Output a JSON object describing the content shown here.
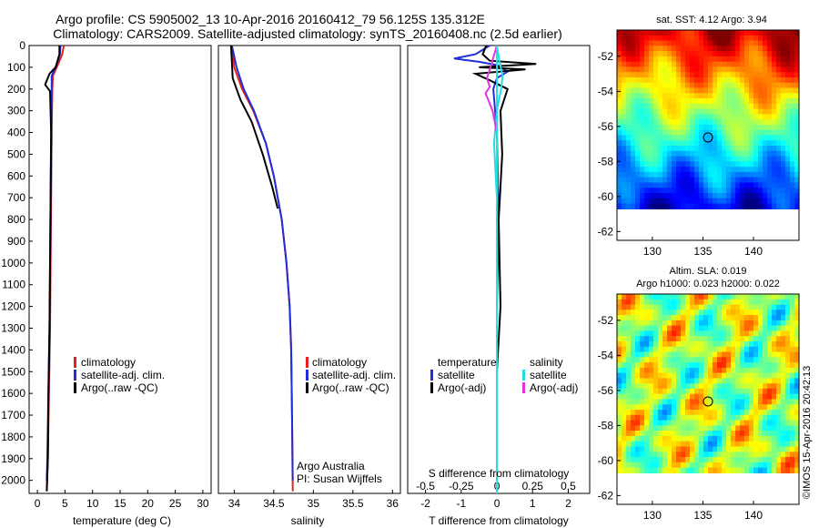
{
  "title_line1": "Argo profile: CS 5905002_13 10-Apr-2016 20160412_79 56.125S 135.312E",
  "title_line2": "Climatology: CARS2009. Satellite-adjusted climatology: synTS_20160408.nc (2.5d earlier)",
  "sst_title": "sat. SST: 4.12 Argo: 3.94",
  "sla_title1": "Altim. SLA: 0.019",
  "sla_title2": "Argo h1000: 0.023 h2000: 0.022",
  "watermark": "©IMOS 15-Apr-2016 20:42:13",
  "credits": [
    "Argo Australia",
    "PI: Susan Wijffels"
  ],
  "colors": {
    "climatology": "#e52020",
    "satellite": "#1f2fd8",
    "argo": "#000000",
    "sal_satellite": "#25dce0",
    "sal_argo": "#e032e0"
  },
  "chart_data": [
    {
      "type": "line",
      "xlabel": "temperature (deg C)",
      "ylabel": "",
      "xlim": [
        -1.5,
        31.5
      ],
      "ylim": [
        2060,
        0
      ],
      "xticks": [
        0,
        5,
        10,
        15,
        20,
        25,
        30
      ],
      "yticks": [
        0,
        100,
        200,
        300,
        400,
        500,
        600,
        700,
        800,
        900,
        1000,
        1100,
        1200,
        1300,
        1400,
        1500,
        1600,
        1700,
        1800,
        1900,
        2000
      ],
      "legend": [
        "climatology",
        "satellite-adj. clim.",
        "Argo(..raw -QC)"
      ],
      "series": [
        {
          "name": "climatology",
          "x": [
            4.8,
            4.5,
            3.6,
            2.8,
            2.7,
            2.6,
            2.5,
            2.4,
            2.3,
            2.1,
            1.9,
            1.7
          ],
          "y": [
            0,
            40,
            95,
            140,
            200,
            400,
            700,
            1000,
            1300,
            1600,
            1900,
            2050
          ]
        },
        {
          "name": "satellite-adj. clim.",
          "x": [
            4.2,
            4.1,
            3.4,
            2.6,
            2.6,
            2.5,
            2.4,
            2.3,
            2.2,
            2.0,
            1.8,
            1.7
          ],
          "y": [
            0,
            40,
            95,
            140,
            200,
            400,
            700,
            1000,
            1300,
            1600,
            1900,
            2000
          ]
        },
        {
          "name": "Argo(..raw -QC)",
          "x": [
            4.0,
            4.0,
            3.3,
            2.2,
            1.4,
            2.3,
            2.5,
            2.4,
            2.3,
            2.2,
            2.0,
            1.9,
            1.7
          ],
          "y": [
            0,
            40,
            100,
            130,
            180,
            210,
            400,
            700,
            1000,
            1300,
            1600,
            1900,
            2050
          ]
        }
      ]
    },
    {
      "type": "line",
      "xlabel": "salinity",
      "xlim": [
        33.8,
        36.1
      ],
      "ylim": [
        2060,
        0
      ],
      "xticks": [
        34,
        34.5,
        35,
        35.5,
        36
      ],
      "legend": [
        "climatology",
        "satellite-adj. clim.",
        "Argo(..raw -QC)"
      ],
      "series": [
        {
          "name": "climatology",
          "x": [
            33.97,
            34.0,
            34.1,
            34.24,
            34.4,
            34.5,
            34.6,
            34.66,
            34.7,
            34.72,
            34.73,
            34.74
          ],
          "y": [
            0,
            100,
            200,
            300,
            450,
            600,
            800,
            1000,
            1200,
            1400,
            1700,
            2050
          ]
        },
        {
          "name": "satellite-adj. clim.",
          "x": [
            33.97,
            34.03,
            34.12,
            34.25,
            34.4,
            34.5,
            34.6,
            34.66,
            34.7,
            34.72,
            34.73,
            34.74
          ],
          "y": [
            0,
            100,
            200,
            300,
            450,
            600,
            800,
            1000,
            1200,
            1400,
            1700,
            2000
          ]
        },
        {
          "name": "Argo(..raw -QC)",
          "x": [
            33.96,
            33.98,
            34.08,
            34.22,
            34.36,
            34.48,
            34.55
          ],
          "y": [
            0,
            150,
            250,
            350,
            500,
            650,
            750
          ]
        }
      ]
    },
    {
      "type": "line",
      "xlabel": "T difference from climatology",
      "xlabel2": "S difference from climatology",
      "xlim": [
        -2.5,
        2.6
      ],
      "ylim": [
        2060,
        0
      ],
      "xticks": [
        -2,
        -1,
        0,
        1,
        2
      ],
      "xticks2": [
        "-0.5",
        "-0.25",
        "0",
        "0.25",
        "0.5"
      ],
      "legend_temperature": [
        "temperature",
        "satellite",
        "Argo(-adj)"
      ],
      "legend_salinity": [
        "salinity",
        "satellite",
        "Argo(-adj)"
      ],
      "series": [
        {
          "name": "T satellite",
          "x": [
            -0.2,
            -0.6,
            -1.2,
            -0.5,
            0,
            0.3,
            0,
            -0.1,
            0,
            0.05,
            0,
            0
          ],
          "y": [
            0,
            40,
            60,
            75,
            90,
            120,
            150,
            200,
            400,
            800,
            1200,
            2000
          ]
        },
        {
          "name": "T Argo(-adj)",
          "x": [
            -0.3,
            -0.4,
            -0.2,
            1.1,
            -0.5,
            0.8,
            -0.6,
            -0.2,
            0.3,
            0.1,
            0.15,
            0.05,
            0.1,
            0
          ],
          "y": [
            0,
            40,
            70,
            85,
            100,
            110,
            130,
            160,
            200,
            300,
            500,
            800,
            1200,
            1500
          ]
        },
        {
          "name": "S satellite",
          "x": [
            0,
            0.02,
            0.04,
            0.03,
            0,
            -0.02,
            0,
            0
          ],
          "y": [
            0,
            80,
            140,
            200,
            300,
            450,
            700,
            2050
          ]
        },
        {
          "name": "S Argo(-adj)",
          "x": [
            0,
            -0.04,
            -0.07,
            -0.05,
            -0.08,
            -0.06,
            -0.03,
            0
          ],
          "y": [
            0,
            90,
            150,
            190,
            220,
            250,
            300,
            400
          ]
        }
      ]
    },
    {
      "type": "heatmap",
      "title": "sat. SST: 4.12 Argo: 3.94",
      "xticks": [
        130,
        135,
        140
      ],
      "yticks": [
        -52,
        -54,
        -56,
        -58,
        -60,
        -62
      ],
      "xlim": [
        126.5,
        144.5
      ],
      "ylim": [
        -62.5,
        -50.5
      ],
      "marker": [
        135.3,
        -56.1
      ]
    },
    {
      "type": "heatmap",
      "title": "Altim. SLA: 0.019",
      "xticks": [
        130,
        135,
        140
      ],
      "yticks": [
        -52,
        -54,
        -56,
        -58,
        -60,
        -62
      ],
      "xlim": [
        126.5,
        144.5
      ],
      "ylim": [
        -62.5,
        -50.5
      ],
      "marker": [
        135.3,
        -56.1
      ]
    }
  ]
}
